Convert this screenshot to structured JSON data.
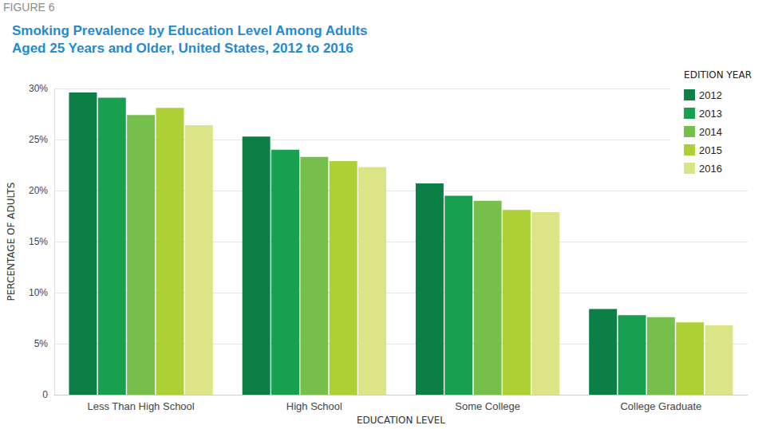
{
  "chart_data": {
    "type": "bar",
    "title": "Smoking Prevalence by Education Level Among Adults\nAged 25 Years and Older, United States, 2012 to 2016",
    "annotations": [
      "FIGURE 6"
    ],
    "legend_title": "EDITION YEAR",
    "xlabel": "EDUCATION LEVEL",
    "ylabel": "PERCENTAGE OF ADULTS",
    "categories": [
      "Less Than High School",
      "High School",
      "Some College",
      "College Graduate"
    ],
    "series": [
      {
        "name": "2012",
        "color": "#0b7f45",
        "values": [
          29.6,
          25.3,
          20.7,
          8.4
        ]
      },
      {
        "name": "2013",
        "color": "#17a04f",
        "values": [
          29.1,
          24.0,
          19.5,
          7.8
        ]
      },
      {
        "name": "2014",
        "color": "#76bf4b",
        "values": [
          27.4,
          23.3,
          19.0,
          7.6
        ]
      },
      {
        "name": "2015",
        "color": "#aed037",
        "values": [
          28.1,
          22.9,
          18.1,
          7.1
        ]
      },
      {
        "name": "2016",
        "color": "#dbe587",
        "values": [
          26.4,
          22.3,
          17.9,
          6.8
        ]
      }
    ],
    "ylim": [
      0,
      30
    ],
    "yticks": [
      0,
      {
        "value": 5,
        "label": "5%"
      },
      {
        "value": 10,
        "label": "10%"
      },
      {
        "value": 15,
        "label": "15%"
      },
      {
        "value": 20,
        "label": "20%"
      },
      {
        "value": 25,
        "label": "25%"
      },
      {
        "value": 30,
        "label": "30%"
      }
    ],
    "grid": true,
    "legend": "top-right"
  }
}
